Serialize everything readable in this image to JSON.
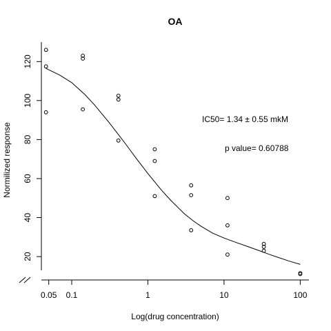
{
  "chart_data": {
    "type": "scatter",
    "title": "OA",
    "xlabel": "Log(drug concentration)",
    "ylabel": "Normilized response",
    "x_scale": "log",
    "xlim": [
      0.04,
      130
    ],
    "ylim": [
      8,
      130
    ],
    "x_ticks": [
      0.05,
      0.1,
      1,
      10,
      100
    ],
    "x_tick_labels": [
      "0.05",
      "0.1",
      "1",
      "10",
      "100"
    ],
    "y_ticks": [
      20,
      40,
      60,
      80,
      100,
      120
    ],
    "y_tick_labels": [
      "20",
      "40",
      "60",
      "80",
      "100",
      "120"
    ],
    "y_axis_break": true,
    "grid": false,
    "points": [
      {
        "x": 0.046,
        "y": 126
      },
      {
        "x": 0.046,
        "y": 117.5
      },
      {
        "x": 0.046,
        "y": 94
      },
      {
        "x": 0.14,
        "y": 123
      },
      {
        "x": 0.14,
        "y": 121.5
      },
      {
        "x": 0.14,
        "y": 95.5
      },
      {
        "x": 0.41,
        "y": 102.5
      },
      {
        "x": 0.41,
        "y": 100.5
      },
      {
        "x": 0.41,
        "y": 79.5
      },
      {
        "x": 1.23,
        "y": 75
      },
      {
        "x": 1.23,
        "y": 69
      },
      {
        "x": 1.23,
        "y": 51
      },
      {
        "x": 3.7,
        "y": 56.5
      },
      {
        "x": 3.7,
        "y": 51.5
      },
      {
        "x": 3.7,
        "y": 33.5
      },
      {
        "x": 11.1,
        "y": 50
      },
      {
        "x": 11.1,
        "y": 36
      },
      {
        "x": 11.1,
        "y": 21
      },
      {
        "x": 33.3,
        "y": 26.5
      },
      {
        "x": 33.3,
        "y": 25
      },
      {
        "x": 33.3,
        "y": 23
      },
      {
        "x": 100,
        "y": 11.5
      },
      {
        "x": 100,
        "y": 11
      }
    ],
    "fit_curve": {
      "x": [
        0.046,
        0.07,
        0.1,
        0.15,
        0.2,
        0.3,
        0.4,
        0.5,
        0.7,
        1.0,
        1.5,
        2.0,
        3.0,
        4.0,
        5.0,
        7.0,
        10,
        15,
        20,
        30,
        40,
        50,
        70,
        100
      ],
      "y": [
        116.5,
        113.0,
        109.2,
        103.0,
        97.7,
        89.4,
        83.1,
        78.2,
        70.5,
        62.6,
        54.2,
        48.8,
        42.0,
        38.1,
        35.5,
        32.1,
        29.5,
        27.0,
        25.3,
        22.8,
        21.0,
        19.7,
        17.8,
        16.0
      ]
    },
    "annotations": [
      {
        "text": "IC50= 1.34 ± 0.55 mkM"
      },
      {
        "text": "p value= 0.60788"
      }
    ]
  }
}
